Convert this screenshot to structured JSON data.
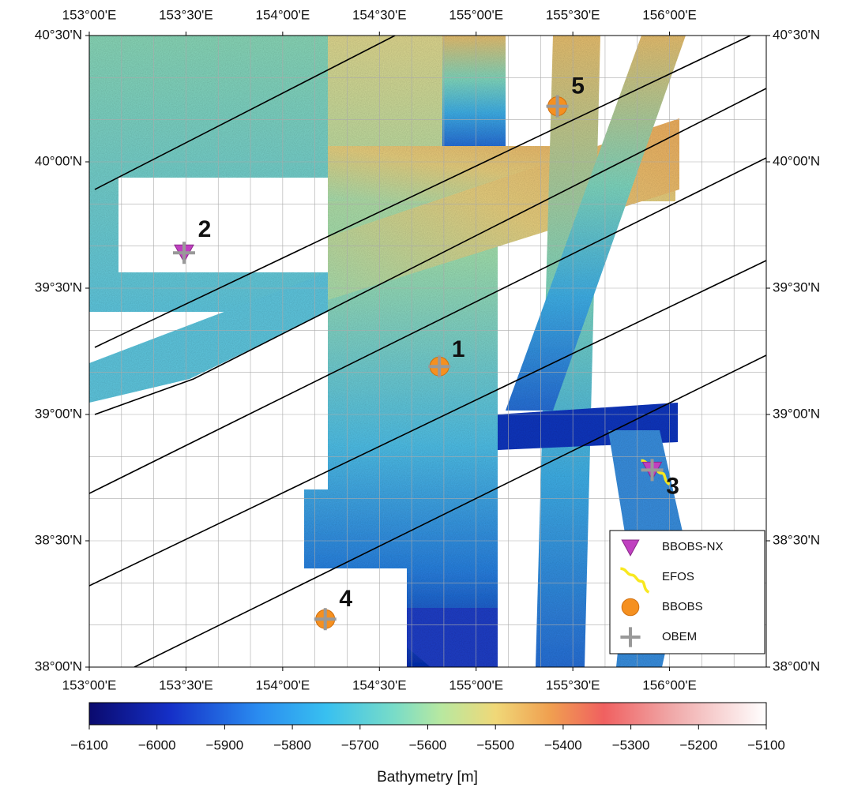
{
  "map": {
    "lon_range": [
      153,
      156.5
    ],
    "lat_range": [
      38,
      40.5
    ],
    "lon_ticks": [
      {
        "value": 153,
        "label": "153°00'E"
      },
      {
        "value": 153.5,
        "label": "153°30'E"
      },
      {
        "value": 154,
        "label": "154°00'E"
      },
      {
        "value": 154.5,
        "label": "154°30'E"
      },
      {
        "value": 155,
        "label": "155°00'E"
      },
      {
        "value": 155.5,
        "label": "155°30'E"
      },
      {
        "value": 156,
        "label": "156°00'E"
      }
    ],
    "lat_ticks": [
      {
        "value": 40.5,
        "label": "40°30'N"
      },
      {
        "value": 40,
        "label": "40°00'N"
      },
      {
        "value": 39.5,
        "label": "39°30'N"
      },
      {
        "value": 39,
        "label": "39°00'N"
      },
      {
        "value": 38.5,
        "label": "38°30'N"
      },
      {
        "value": 38,
        "label": "38°00'N"
      }
    ],
    "legend": [
      "BBOBS-NX",
      "EFOS",
      "BBOBS",
      "OBEM"
    ],
    "stations": [
      {
        "label": "1",
        "lon": 154.81,
        "lat": 39.19,
        "instruments": [
          2,
          3
        ]
      },
      {
        "label": "2",
        "lon": 153.49,
        "lat": 39.64,
        "instruments": [
          0,
          3
        ]
      },
      {
        "label": "3",
        "lon": 155.91,
        "lat": 38.78,
        "instruments": [
          1,
          0,
          3
        ]
      },
      {
        "label": "4",
        "lon": 154.22,
        "lat": 38.19,
        "instruments": [
          2,
          3
        ]
      },
      {
        "label": "5",
        "lon": 155.42,
        "lat": 40.22,
        "instruments": [
          2,
          3
        ]
      }
    ],
    "colorbar": {
      "title": "Bathymetry [m]",
      "range": [
        -6100,
        -5100
      ],
      "ticks": [
        {
          "value": -6100,
          "label": "−6100"
        },
        {
          "value": -6000,
          "label": "−6000"
        },
        {
          "value": -5900,
          "label": "−5900"
        },
        {
          "value": -5800,
          "label": "−5800"
        },
        {
          "value": -5700,
          "label": "−5700"
        },
        {
          "value": -5600,
          "label": "−5600"
        },
        {
          "value": -5500,
          "label": "−5500"
        },
        {
          "value": -5400,
          "label": "−5400"
        },
        {
          "value": -5300,
          "label": "−5300"
        },
        {
          "value": -5200,
          "label": "−5200"
        },
        {
          "value": -5100,
          "label": "−5100"
        }
      ]
    }
  }
}
